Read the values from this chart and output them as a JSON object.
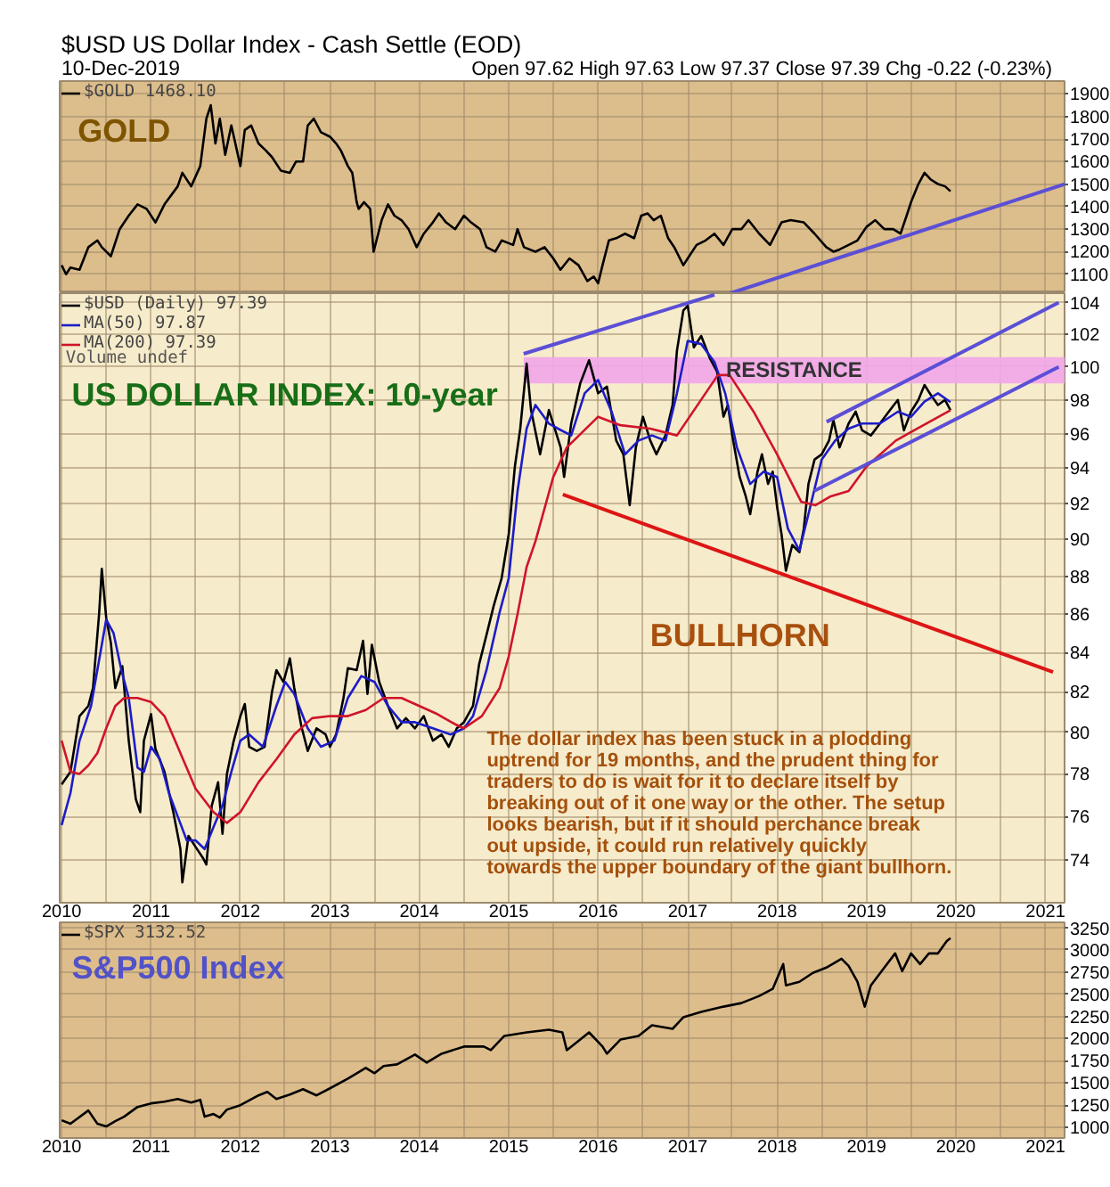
{
  "chart_data": [
    {
      "type": "line",
      "title": "$USD US Dollar Index - Cash Settle (EOD)",
      "subtitle": "10-Dec-2019",
      "annotations": [
        "Open 97.62 High 97.63 Low 97.37 Close 97.39 Chg -0.22 (-0.23%)",
        "GOLD"
      ],
      "series": [
        {
          "name": "$GOLD 1468.10",
          "color": "#000000",
          "x": [
            "2010-01-01",
            "2010-01-19",
            "2010-02-06",
            "2010-03-15",
            "2010-04-20",
            "2010-05-27",
            "2010-06-14",
            "2010-07-21",
            "2010-08-26",
            "2010-10-02",
            "2010-11-07",
            "2010-12-14",
            "2011-01-19",
            "2011-02-25",
            "2011-04-20",
            "2011-05-09",
            "2011-06-14",
            "2011-07-21",
            "2011-08-15",
            "2011-09-02",
            "2011-09-21",
            "2011-10-09",
            "2011-10-31",
            "2011-11-25",
            "2012-01-01",
            "2012-01-19",
            "2012-02-14",
            "2012-03-15",
            "2012-04-13",
            "2012-05-09",
            "2012-06-14",
            "2012-07-21",
            "2012-08-15",
            "2012-09-13",
            "2012-10-02",
            "2012-10-27",
            "2012-11-25",
            "2013-01-01",
            "2013-01-26",
            "2013-02-14",
            "2013-03-15",
            "2013-04-02",
            "2013-04-20",
            "2013-04-28",
            "2013-05-20",
            "2013-06-14",
            "2013-06-28",
            "2013-07-31",
            "2013-08-26",
            "2013-09-21",
            "2013-10-20",
            "2013-11-18",
            "2013-12-21",
            "2014-01-19",
            "2014-02-25",
            "2014-03-22",
            "2014-04-20",
            "2014-05-27",
            "2014-07-02",
            "2014-07-31",
            "2014-09-06",
            "2014-10-02",
            "2014-11-07",
            "2014-12-03",
            "2015-01-19",
            "2015-02-06",
            "2015-03-04",
            "2015-04-20",
            "2015-05-27",
            "2015-07-02",
            "2015-07-31",
            "2015-09-06",
            "2015-10-13",
            "2015-11-18",
            "2015-12-14",
            "2016-01-01",
            "2016-01-19",
            "2016-02-14",
            "2016-03-15",
            "2016-04-20",
            "2016-05-27",
            "2016-06-25",
            "2016-07-21",
            "2016-08-15",
            "2016-09-13",
            "2016-10-13",
            "2016-11-07",
            "2016-12-14",
            "2017-01-01",
            "2017-02-06",
            "2017-03-15",
            "2017-04-20",
            "2017-05-27",
            "2017-07-02",
            "2017-08-08",
            "2017-09-06",
            "2017-10-20",
            "2017-12-03",
            "2018-01-19",
            "2018-02-25",
            "2018-04-20",
            "2018-06-03",
            "2018-07-21",
            "2018-08-19",
            "2018-09-13",
            "2018-10-20",
            "2018-11-25",
            "2019-01-01",
            "2019-02-06",
            "2019-03-15",
            "2019-04-20",
            "2019-05-20",
            "2019-06-14",
            "2019-07-02",
            "2019-08-01",
            "2019-08-26",
            "2019-09-21",
            "2019-10-20",
            "2019-11-18",
            "2019-12-10"
          ],
          "values": [
            1140,
            1100,
            1130,
            1120,
            1220,
            1250,
            1220,
            1180,
            1300,
            1360,
            1410,
            1390,
            1330,
            1410,
            1490,
            1550,
            1490,
            1580,
            1790,
            1850,
            1680,
            1790,
            1630,
            1760,
            1580,
            1740,
            1760,
            1680,
            1650,
            1620,
            1560,
            1550,
            1600,
            1600,
            1760,
            1790,
            1730,
            1710,
            1680,
            1650,
            1580,
            1550,
            1420,
            1390,
            1420,
            1390,
            1200,
            1340,
            1410,
            1360,
            1340,
            1300,
            1220,
            1280,
            1330,
            1370,
            1330,
            1300,
            1360,
            1330,
            1300,
            1220,
            1200,
            1250,
            1230,
            1300,
            1220,
            1200,
            1220,
            1170,
            1120,
            1170,
            1140,
            1070,
            1090,
            1060,
            1140,
            1250,
            1260,
            1280,
            1260,
            1360,
            1370,
            1340,
            1360,
            1260,
            1220,
            1140,
            1170,
            1230,
            1250,
            1280,
            1230,
            1300,
            1300,
            1340,
            1280,
            1230,
            1330,
            1340,
            1330,
            1280,
            1220,
            1200,
            1210,
            1230,
            1250,
            1310,
            1340,
            1300,
            1300,
            1280,
            1360,
            1420,
            1500,
            1550,
            1520,
            1500,
            1490,
            1468.1
          ]
        },
        {
          "type": "line",
          "color": "#5b4fd6",
          "x": [
            "2017-06-25",
            "2021-03-20"
          ],
          "values": [
            1016,
            1500
          ]
        }
      ],
      "xlim": [
        "2009-12-24",
        "2021-03-20"
      ],
      "xticks": [
        "2010",
        {
          "value": "2010-07",
          "label": null
        },
        "2011",
        {
          "value": "2011-07",
          "label": null
        },
        "2012",
        {
          "value": "2012-07",
          "label": null
        },
        "2013",
        {
          "value": "2013-07",
          "label": null
        },
        "2014",
        {
          "value": "2014-07",
          "label": null
        },
        "2015",
        {
          "value": "2015-07",
          "label": null
        },
        "2016",
        {
          "value": "2016-07",
          "label": null
        },
        "2017",
        {
          "value": "2017-07",
          "label": null
        },
        "2018",
        {
          "value": "2018-07",
          "label": null
        },
        "2019",
        {
          "value": "2019-07",
          "label": null
        },
        "2020",
        {
          "value": "2020-07",
          "label": null
        },
        "2021"
      ],
      "ylim": [
        1016,
        1957
      ],
      "yticks": [
        1100,
        1200,
        1300,
        1400,
        1500,
        1600,
        1700,
        1800,
        1900
      ],
      "grid": true,
      "legend": "top left",
      "tick_labels": "y"
    },
    {
      "type": "line",
      "annotations": [
        "Volume undef",
        "US DOLLAR INDEX: 10-year",
        "BULLHORN",
        "The dollar index has been stuck in a plodding uptrend for 19 months, and the prudent thing for traders to do is wait for it to declare itself by breaking out of it one way or the other. The setup looks bearish, but if it should perchance break out upside, it could run relatively quickly towards the upper boundary of the giant bullhorn."
      ],
      "series": [
        {
          "name": "$USD (Daily) 97.39",
          "color": "#000000",
          "x": [
            "2010-01-01",
            "2010-02-06",
            "2010-03-15",
            "2010-04-20",
            "2010-05-09",
            "2010-06-03",
            "2010-06-14",
            "2010-07-02",
            "2010-07-21",
            "2010-08-08",
            "2010-09-06",
            "2010-10-02",
            "2010-10-31",
            "2010-11-18",
            "2010-12-03",
            "2011-01-01",
            "2011-01-19",
            "2011-02-25",
            "2011-04-02",
            "2011-05-01",
            "2011-05-09",
            "2011-06-03",
            "2011-07-02",
            "2011-08-01",
            "2011-08-15",
            "2011-09-06",
            "2011-10-02",
            "2011-10-20",
            "2011-11-07",
            "2011-12-03",
            "2012-01-01",
            "2012-01-19",
            "2012-02-06",
            "2012-03-08",
            "2012-04-09",
            "2012-05-09",
            "2012-05-27",
            "2012-06-25",
            "2012-07-21",
            "2012-08-08",
            "2012-09-06",
            "2012-10-02",
            "2012-11-07",
            "2012-12-14",
            "2013-01-01",
            "2013-01-26",
            "2013-02-25",
            "2013-03-15",
            "2013-04-20",
            "2013-05-16",
            "2013-06-03",
            "2013-06-21",
            "2013-07-21",
            "2013-08-26",
            "2013-10-02",
            "2013-11-07",
            "2013-12-14",
            "2014-01-19",
            "2014-02-25",
            "2014-04-02",
            "2014-05-01",
            "2014-06-03",
            "2014-07-02",
            "2014-08-08",
            "2014-09-02",
            "2014-10-02",
            "2014-10-31",
            "2014-12-03",
            "2015-01-01",
            "2015-01-26",
            "2015-02-17",
            "2015-03-15",
            "2015-04-02",
            "2015-05-09",
            "2015-06-14",
            "2015-08-01",
            "2015-08-15",
            "2015-09-13",
            "2015-10-20",
            "2015-11-25",
            "2016-01-01",
            "2016-02-06",
            "2016-03-15",
            "2016-04-13",
            "2016-05-09",
            "2016-06-03",
            "2016-07-02",
            "2016-08-01",
            "2016-08-26",
            "2016-10-02",
            "2016-10-31",
            "2016-11-18",
            "2016-12-14",
            "2017-01-01",
            "2017-01-26",
            "2017-02-25",
            "2017-04-02",
            "2017-05-01",
            "2017-05-27",
            "2017-06-14",
            "2017-07-02",
            "2017-08-01",
            "2017-08-26",
            "2017-09-13",
            "2017-10-13",
            "2017-10-31",
            "2017-11-25",
            "2017-12-14",
            "2018-01-01",
            "2018-01-19",
            "2018-02-06",
            "2018-03-04",
            "2018-04-02",
            "2018-04-20",
            "2018-05-09",
            "2018-06-03",
            "2018-07-02",
            "2018-08-01",
            "2018-08-19",
            "2018-09-13",
            "2018-10-20",
            "2018-11-18",
            "2018-12-14",
            "2019-01-19",
            "2019-02-25",
            "2019-04-02",
            "2019-05-09",
            "2019-06-03",
            "2019-07-02",
            "2019-08-01",
            "2019-08-26",
            "2019-09-21",
            "2019-10-20",
            "2019-11-18",
            "2019-12-10"
          ],
          "values": [
            77.5,
            78.1,
            80.8,
            81.3,
            82.2,
            86.0,
            88.4,
            85.8,
            84.5,
            82.2,
            83.3,
            79.6,
            76.8,
            76.2,
            79.6,
            80.9,
            79.2,
            78.1,
            76.2,
            74.5,
            73.0,
            75.1,
            74.6,
            74.1,
            73.8,
            76.5,
            77.6,
            75.2,
            78.0,
            79.5,
            80.8,
            81.4,
            79.3,
            79.1,
            79.3,
            82.0,
            83.1,
            82.5,
            83.7,
            82.2,
            80.3,
            79.1,
            80.2,
            79.9,
            79.3,
            79.9,
            81.7,
            83.2,
            83.1,
            84.6,
            81.9,
            84.4,
            82.5,
            81.3,
            80.2,
            80.7,
            80.2,
            80.8,
            79.6,
            79.9,
            79.3,
            80.2,
            80.5,
            81.3,
            83.4,
            84.9,
            86.4,
            87.9,
            90.3,
            94.1,
            96.3,
            100.2,
            97.4,
            94.8,
            97.4,
            95.2,
            93.5,
            96.6,
            99.0,
            100.4,
            98.4,
            98.8,
            95.6,
            94.8,
            91.9,
            95.2,
            97.0,
            95.6,
            94.8,
            95.9,
            97.7,
            101.0,
            103.5,
            103.8,
            101.2,
            101.9,
            100.5,
            99.7,
            97.0,
            97.7,
            95.9,
            93.5,
            92.4,
            91.4,
            93.8,
            94.8,
            93.1,
            93.8,
            91.8,
            90.3,
            88.3,
            89.7,
            89.3,
            90.6,
            93.1,
            94.5,
            94.8,
            95.6,
            96.8,
            95.2,
            96.6,
            97.3,
            96.2,
            95.9,
            96.6,
            97.3,
            98.0,
            96.2,
            97.3,
            98.0,
            98.9,
            98.3,
            97.7,
            98.0,
            97.39
          ]
        },
        {
          "name": "MA(50) 97.87",
          "color": "#1c1cc8",
          "x": [
            "2010-01-01",
            "2010-02-06",
            "2010-03-15",
            "2010-05-01",
            "2010-06-14",
            "2010-07-02",
            "2010-08-01",
            "2010-09-02",
            "2010-10-02",
            "2010-11-07",
            "2010-12-03",
            "2011-01-01",
            "2011-02-06",
            "2011-03-15",
            "2011-04-20",
            "2011-05-27",
            "2011-07-02",
            "2011-08-08",
            "2011-09-13",
            "2011-10-20",
            "2011-11-25",
            "2012-01-01",
            "2012-02-06",
            "2012-04-02",
            "2012-05-27",
            "2012-07-02",
            "2012-08-08",
            "2012-10-02",
            "2012-11-25",
            "2013-01-19",
            "2013-03-15",
            "2013-05-09",
            "2013-07-02",
            "2013-08-26",
            "2013-10-20",
            "2013-12-14",
            "2014-02-25",
            "2014-05-09",
            "2014-07-02",
            "2014-08-08",
            "2014-10-02",
            "2014-11-25",
            "2015-01-01",
            "2015-02-06",
            "2015-03-15",
            "2015-04-20",
            "2015-06-14",
            "2015-07-21",
            "2015-09-13",
            "2015-11-07",
            "2016-01-01",
            "2016-02-25",
            "2016-04-20",
            "2016-06-14",
            "2016-08-08",
            "2016-10-02",
            "2016-11-18",
            "2017-01-01",
            "2017-02-25",
            "2017-04-20",
            "2017-06-03",
            "2017-07-21",
            "2017-09-13",
            "2017-11-07",
            "2018-01-01",
            "2018-02-14",
            "2018-04-02",
            "2018-05-09",
            "2018-07-02",
            "2018-08-26",
            "2018-10-20",
            "2018-12-14",
            "2019-02-25",
            "2019-05-09",
            "2019-07-02",
            "2019-08-26",
            "2019-10-20",
            "2019-12-10"
          ],
          "values": [
            75.6,
            77.1,
            79.6,
            81.3,
            84.4,
            85.7,
            85.0,
            83.1,
            81.7,
            78.3,
            78.1,
            79.3,
            78.7,
            77.1,
            76.0,
            74.9,
            74.9,
            74.5,
            75.5,
            76.5,
            78.1,
            79.6,
            79.9,
            79.3,
            81.3,
            82.5,
            81.9,
            80.2,
            79.3,
            79.6,
            81.7,
            82.8,
            82.5,
            81.3,
            80.5,
            80.5,
            80.2,
            79.9,
            80.2,
            80.8,
            83.1,
            86.1,
            87.9,
            92.7,
            96.3,
            97.7,
            96.6,
            96.3,
            95.9,
            98.4,
            99.2,
            97.3,
            94.8,
            95.6,
            95.9,
            95.6,
            98.4,
            101.6,
            101.4,
            100.3,
            98.4,
            95.2,
            93.1,
            93.8,
            93.5,
            90.6,
            89.4,
            91.4,
            94.5,
            95.6,
            96.3,
            96.6,
            96.6,
            97.3,
            97.0,
            97.9,
            98.4,
            97.87
          ]
        },
        {
          "name": "MA(200) 97.39",
          "color": "#d0142a",
          "x": [
            "2010-01-01",
            "2010-02-06",
            "2010-03-15",
            "2010-04-20",
            "2010-05-27",
            "2010-07-02",
            "2010-08-08",
            "2010-09-13",
            "2010-11-07",
            "2011-01-01",
            "2011-02-25",
            "2011-04-20",
            "2011-07-02",
            "2011-09-13",
            "2011-11-07",
            "2012-01-01",
            "2012-03-15",
            "2012-05-27",
            "2012-08-08",
            "2012-10-20",
            "2013-01-01",
            "2013-03-15",
            "2013-05-27",
            "2013-08-08",
            "2013-10-20",
            "2014-01-01",
            "2014-03-15",
            "2014-05-27",
            "2014-07-02",
            "2014-09-13",
            "2014-11-25",
            "2015-01-01",
            "2015-02-06",
            "2015-03-15",
            "2015-04-20",
            "2015-07-02",
            "2015-08-26",
            "2016-01-01",
            "2016-04-01",
            "2016-08-01",
            "2016-11-18",
            "2017-05-04",
            "2017-06-21",
            "2017-09-27",
            "2018-01-01",
            "2018-04-09",
            "2018-06-07",
            "2018-08-08",
            "2018-10-20",
            "2019-01-01",
            "2019-05-01",
            "2019-09-02",
            "2019-12-10"
          ],
          "values": [
            79.6,
            78.1,
            78.0,
            78.4,
            79.0,
            80.2,
            81.3,
            81.7,
            81.7,
            81.5,
            80.8,
            79.3,
            77.3,
            76.2,
            75.7,
            76.2,
            77.6,
            78.7,
            79.9,
            80.7,
            80.8,
            80.8,
            81.1,
            81.7,
            81.7,
            81.3,
            80.9,
            80.4,
            80.2,
            80.8,
            82.2,
            83.8,
            86.0,
            88.5,
            89.9,
            93.5,
            95.2,
            97.0,
            96.5,
            96.3,
            95.9,
            99.5,
            99.5,
            97.3,
            94.8,
            92.1,
            91.9,
            92.4,
            92.7,
            94.1,
            95.6,
            96.6,
            97.39
          ]
        },
        {
          "type": "line",
          "color": "#5b4fd6",
          "x": [
            "2015-03-03",
            "2017-04-20"
          ],
          "values": [
            100.8,
            104.5
          ]
        },
        {
          "type": "line",
          "color": "#dd1515",
          "x": [
            "2015-08-10",
            "2021-02-01"
          ],
          "values": [
            92.5,
            83.0
          ]
        },
        {
          "type": "line",
          "color": "#5b4fd6",
          "x": [
            "2018-07-22",
            "2021-02-24"
          ],
          "values": [
            96.7,
            104.0
          ]
        },
        {
          "type": "line",
          "color": "#5b4fd6",
          "x": [
            "2018-06-01",
            "2021-02-24"
          ],
          "values": [
            92.7,
            100.0
          ]
        }
      ],
      "bands": [
        {
          "axis": "y",
          "from": 99.0,
          "to": 100.6,
          "label": "RESISTANCE",
          "color": "#f2a6ea"
        }
      ],
      "xlim": [
        "2009-12-24",
        "2021-03-20"
      ],
      "xticks": [
        "2010",
        {
          "value": "2010-07",
          "label": null
        },
        "2011",
        {
          "value": "2011-07",
          "label": null
        },
        "2012",
        {
          "value": "2012-07",
          "label": null
        },
        "2013",
        {
          "value": "2013-07",
          "label": null
        },
        "2014",
        {
          "value": "2014-07",
          "label": null
        },
        "2015",
        {
          "value": "2015-07",
          "label": null
        },
        "2016",
        {
          "value": "2016-07",
          "label": null
        },
        "2017",
        {
          "value": "2017-07",
          "label": null
        },
        "2018",
        {
          "value": "2018-07",
          "label": null
        },
        "2019",
        {
          "value": "2019-07",
          "label": null
        },
        "2020",
        {
          "value": "2020-07",
          "label": null
        },
        "2021"
      ],
      "ylim": [
        72.1,
        104.6
      ],
      "yticks": [
        74,
        76,
        78,
        80,
        82,
        84,
        86,
        88,
        90,
        92,
        94,
        96,
        98,
        100,
        102,
        104
      ],
      "log": true,
      "grid": true,
      "legend": "top left"
    },
    {
      "type": "line",
      "annotations": [
        "S&P500 Index"
      ],
      "series": [
        {
          "name": "$SPX 3132.52",
          "color": "#000000",
          "x": [
            "2010-01-01",
            "2010-02-06",
            "2010-04-20",
            "2010-05-27",
            "2010-07-02",
            "2010-08-08",
            "2010-09-13",
            "2010-11-07",
            "2011-01-01",
            "2011-02-25",
            "2011-04-20",
            "2011-06-14",
            "2011-07-21",
            "2011-08-08",
            "2011-09-13",
            "2011-10-09",
            "2011-11-07",
            "2012-01-01",
            "2012-03-15",
            "2012-04-20",
            "2012-05-27",
            "2012-07-21",
            "2012-09-13",
            "2012-11-07",
            "2013-01-01",
            "2013-03-15",
            "2013-05-27",
            "2013-07-02",
            "2013-08-08",
            "2013-10-02",
            "2013-12-14",
            "2014-01-31",
            "2014-04-02",
            "2014-07-02",
            "2014-09-21",
            "2014-10-20",
            "2014-12-14",
            "2015-03-15",
            "2015-06-14",
            "2015-08-08",
            "2015-08-26",
            "2015-10-20",
            "2015-11-25",
            "2016-01-19",
            "2016-02-06",
            "2016-04-02",
            "2016-06-14",
            "2016-08-08",
            "2016-10-31",
            "2016-12-14",
            "2017-02-25",
            "2017-05-27",
            "2017-08-08",
            "2017-10-20",
            "2017-12-14",
            "2018-01-26",
            "2018-02-06",
            "2018-04-02",
            "2018-05-27",
            "2018-07-21",
            "2018-09-21",
            "2018-10-20",
            "2018-11-25",
            "2018-12-25",
            "2019-01-19",
            "2019-03-15",
            "2019-04-28",
            "2019-05-27",
            "2019-07-02",
            "2019-08-08",
            "2019-09-13",
            "2019-10-20",
            "2019-11-25",
            "2019-12-10"
          ],
          "values": [
            1080,
            1040,
            1190,
            1040,
            1010,
            1070,
            1120,
            1230,
            1270,
            1290,
            1320,
            1280,
            1310,
            1120,
            1150,
            1110,
            1200,
            1250,
            1360,
            1400,
            1320,
            1370,
            1430,
            1360,
            1440,
            1550,
            1670,
            1610,
            1690,
            1710,
            1820,
            1730,
            1830,
            1910,
            1910,
            1870,
            2030,
            2070,
            2100,
            2070,
            1870,
            1990,
            2070,
            1910,
            1830,
            1990,
            2030,
            2150,
            2110,
            2240,
            2300,
            2360,
            2400,
            2480,
            2560,
            2840,
            2600,
            2640,
            2740,
            2800,
            2900,
            2820,
            2640,
            2360,
            2600,
            2800,
            2960,
            2760,
            2960,
            2840,
            2960,
            2960,
            3100,
            3132.52
          ]
        }
      ],
      "xlim": [
        "2009-12-24",
        "2021-03-20"
      ],
      "xticks": [
        "2010",
        {
          "value": "2010-07",
          "label": null
        },
        "2011",
        {
          "value": "2011-07",
          "label": null
        },
        "2012",
        {
          "value": "2012-07",
          "label": null
        },
        "2013",
        {
          "value": "2013-07",
          "label": null
        },
        "2014",
        {
          "value": "2014-07",
          "label": null
        },
        "2015",
        {
          "value": "2015-07",
          "label": null
        },
        "2016",
        {
          "value": "2016-07",
          "label": null
        },
        "2017",
        {
          "value": "2017-07",
          "label": null
        },
        "2018",
        {
          "value": "2018-07",
          "label": null
        },
        "2019",
        {
          "value": "2019-07",
          "label": null
        },
        "2020",
        {
          "value": "2020-07",
          "label": null
        },
        "2021"
      ],
      "ylim": [
        880,
        3310
      ],
      "yticks": [
        1000,
        1250,
        1500,
        1750,
        2000,
        2250,
        2500,
        2750,
        3000,
        3250
      ],
      "grid": true,
      "legend": "top left"
    }
  ]
}
